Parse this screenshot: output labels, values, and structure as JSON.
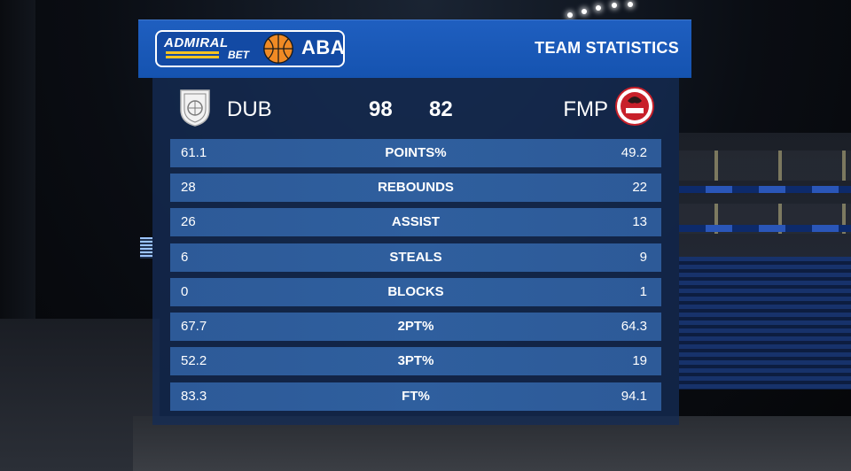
{
  "header": {
    "sponsor_main": "ADMIRAL",
    "sponsor_sub": "BET",
    "league": "ABA",
    "title": "TEAM STATISTICS"
  },
  "home": {
    "abbr": "DUB",
    "score": "98",
    "crest_icon": "dubai-crest-icon"
  },
  "away": {
    "abbr": "FMP",
    "score": "82",
    "crest_icon": "fmp-crest-icon"
  },
  "stats": [
    {
      "label": "POINTS%",
      "home": "61.1",
      "away": "49.2"
    },
    {
      "label": "REBOUNDS",
      "home": "28",
      "away": "22"
    },
    {
      "label": "ASSIST",
      "home": "26",
      "away": "13"
    },
    {
      "label": "STEALS",
      "home": "6",
      "away": "9"
    },
    {
      "label": "BLOCKS",
      "home": "0",
      "away": "1"
    },
    {
      "label": "2PT%",
      "home": "67.7",
      "away": "64.3"
    },
    {
      "label": "3PT%",
      "home": "52.2",
      "away": "19"
    },
    {
      "label": "FT%",
      "home": "83.3",
      "away": "94.1"
    }
  ],
  "colors": {
    "header_blue": "#1f5fc0",
    "row_blue": "#2d5a98",
    "ball_orange": "#f08a24",
    "sponsor_yellow": "#f7c420",
    "fmp_red": "#c8202a"
  }
}
